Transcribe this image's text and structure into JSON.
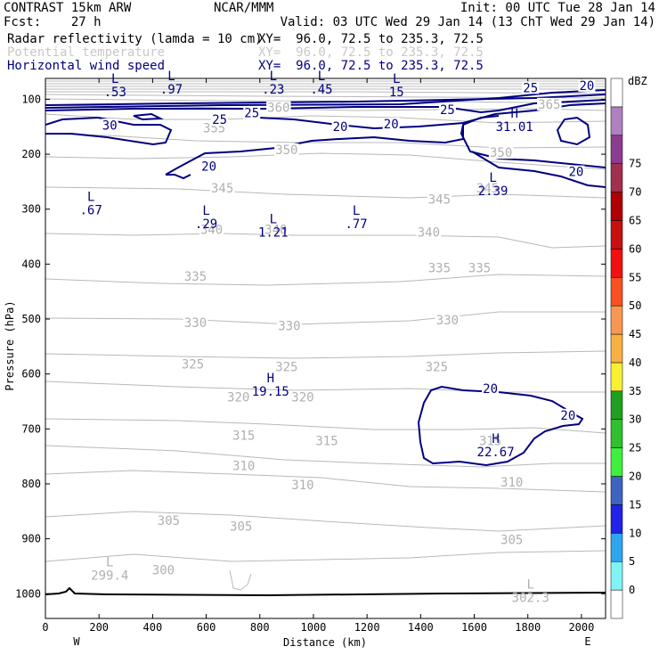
{
  "header": {
    "line1_left": "CONTRAST 15km ARW",
    "line1_center": "NCAR/MMM",
    "line1_right": "Init: 00 UTC Tue 28 Jan 14",
    "line2_left": "Fcst:    27 h",
    "line2_right": "Valid: 03 UTC Wed 29 Jan 14 (13 ChT Wed 29 Jan 14)",
    "fields": [
      {
        "name": "Radar reflectivity (lamda = 10 cm)",
        "xy": "XY=  96.0, 72.5 to 235.3, 72.5",
        "color": "#000000"
      },
      {
        "name": "Potential temperature",
        "xy": "XY=  96.0, 72.5 to 235.3, 72.5",
        "color": "#c8c8c8"
      },
      {
        "name": "Horizontal wind speed",
        "xy": "XY=  96.0, 72.5 to 235.3, 72.5",
        "color": "#000080"
      }
    ]
  },
  "chart_data": {
    "type": "contour-cross-section",
    "xlabel": "Distance (km)",
    "ylabel": "Pressure (hPa)",
    "xlim": [
      0,
      2090
    ],
    "ylim": [
      1045,
      62
    ],
    "x_ticks": [
      0,
      200,
      400,
      600,
      800,
      1000,
      1200,
      1400,
      1600,
      1800,
      2000
    ],
    "y_ticks": [
      100,
      200,
      300,
      400,
      500,
      600,
      700,
      800,
      900,
      1000
    ],
    "left_end_label": "W",
    "right_end_label": "E",
    "colorbar": {
      "unit": "dBZ",
      "levels": [
        0,
        5,
        10,
        15,
        20,
        25,
        30,
        35,
        40,
        45,
        50,
        55,
        60,
        65,
        70,
        75
      ],
      "colors": [
        "#ffffff",
        "#7ff4f4",
        "#2ea6ee",
        "#2222e8",
        "#3c64c0",
        "#3cf03c",
        "#30c030",
        "#20a020",
        "#f8f030",
        "#f8b040",
        "#f89850",
        "#f85020",
        "#f01010",
        "#c81010",
        "#b00000",
        "#a03050",
        "#8c3c90",
        "#b080c0",
        "#ffffff"
      ]
    },
    "theta_contour_labels": [
      {
        "text": "365",
        "x": 1880,
        "p": 112
      },
      {
        "text": "360",
        "x": 870,
        "p": 118
      },
      {
        "text": "355",
        "x": 630,
        "p": 155
      },
      {
        "text": "350",
        "x": 900,
        "p": 195
      },
      {
        "text": "350",
        "x": 1700,
        "p": 200
      },
      {
        "text": "345",
        "x": 660,
        "p": 265
      },
      {
        "text": "345",
        "x": 1470,
        "p": 285
      },
      {
        "text": "345",
        "x": 1650,
        "p": 265
      },
      {
        "text": "340",
        "x": 620,
        "p": 340
      },
      {
        "text": "340",
        "x": 860,
        "p": 340
      },
      {
        "text": "340",
        "x": 1430,
        "p": 345
      },
      {
        "text": "335",
        "x": 560,
        "p": 425
      },
      {
        "text": "335",
        "x": 1470,
        "p": 410
      },
      {
        "text": "335",
        "x": 1620,
        "p": 410
      },
      {
        "text": "330",
        "x": 560,
        "p": 510
      },
      {
        "text": "330",
        "x": 910,
        "p": 515
      },
      {
        "text": "330",
        "x": 1500,
        "p": 505
      },
      {
        "text": "325",
        "x": 550,
        "p": 585
      },
      {
        "text": "325",
        "x": 900,
        "p": 590
      },
      {
        "text": "325",
        "x": 1460,
        "p": 590
      },
      {
        "text": "320",
        "x": 720,
        "p": 645
      },
      {
        "text": "320",
        "x": 960,
        "p": 645
      },
      {
        "text": "315",
        "x": 740,
        "p": 715
      },
      {
        "text": "315",
        "x": 1050,
        "p": 725
      },
      {
        "text": "315",
        "x": 1660,
        "p": 725
      },
      {
        "text": "310",
        "x": 740,
        "p": 770
      },
      {
        "text": "310",
        "x": 960,
        "p": 805
      },
      {
        "text": "310",
        "x": 1740,
        "p": 800
      },
      {
        "text": "305",
        "x": 460,
        "p": 870
      },
      {
        "text": "305",
        "x": 730,
        "p": 880
      },
      {
        "text": "305",
        "x": 1740,
        "p": 905
      },
      {
        "text": "300",
        "x": 440,
        "p": 960
      }
    ],
    "wind_contour_labels": [
      {
        "text": "25",
        "x": 1810,
        "p": 82
      },
      {
        "text": "20",
        "x": 2020,
        "p": 78
      },
      {
        "text": "25",
        "x": 650,
        "p": 140
      },
      {
        "text": "25",
        "x": 770,
        "p": 128
      },
      {
        "text": "30",
        "x": 240,
        "p": 150
      },
      {
        "text": "25",
        "x": 1500,
        "p": 122
      },
      {
        "text": "20",
        "x": 1100,
        "p": 153
      },
      {
        "text": "20",
        "x": 1290,
        "p": 148
      },
      {
        "text": "20",
        "x": 610,
        "p": 225
      },
      {
        "text": "20",
        "x": 1980,
        "p": 235
      },
      {
        "text": "20",
        "x": 1660,
        "p": 630
      },
      {
        "text": "20",
        "x": 1950,
        "p": 678
      }
    ],
    "extrema": [
      {
        "type": "L",
        "value": ".53",
        "x": 260,
        "p": 80
      },
      {
        "type": "L",
        "value": ".97",
        "x": 470,
        "p": 75
      },
      {
        "type": "L",
        "value": ".23",
        "x": 850,
        "p": 75
      },
      {
        "type": "L",
        "value": ".45",
        "x": 1030,
        "p": 75
      },
      {
        "type": "L",
        "value": "15",
        "x": 1310,
        "p": 80
      },
      {
        "type": "H",
        "value": "31.01",
        "x": 1750,
        "p": 143
      },
      {
        "type": "L",
        "value": ".67",
        "x": 170,
        "p": 295
      },
      {
        "type": "L",
        "value": ".29",
        "x": 600,
        "p": 320
      },
      {
        "type": "L",
        "value": "1.21",
        "x": 850,
        "p": 335
      },
      {
        "type": "L",
        "value": ".77",
        "x": 1160,
        "p": 320
      },
      {
        "type": "L",
        "value": "2.39",
        "x": 1670,
        "p": 260
      },
      {
        "type": "H",
        "value": "19.15",
        "x": 840,
        "p": 625
      },
      {
        "type": "H",
        "value": "22.67",
        "x": 1680,
        "p": 735
      },
      {
        "type": "L",
        "value": "299.4",
        "x": 240,
        "p": 960
      },
      {
        "type": "L",
        "value": "302.3",
        "x": 1810,
        "p": 1000
      }
    ]
  }
}
